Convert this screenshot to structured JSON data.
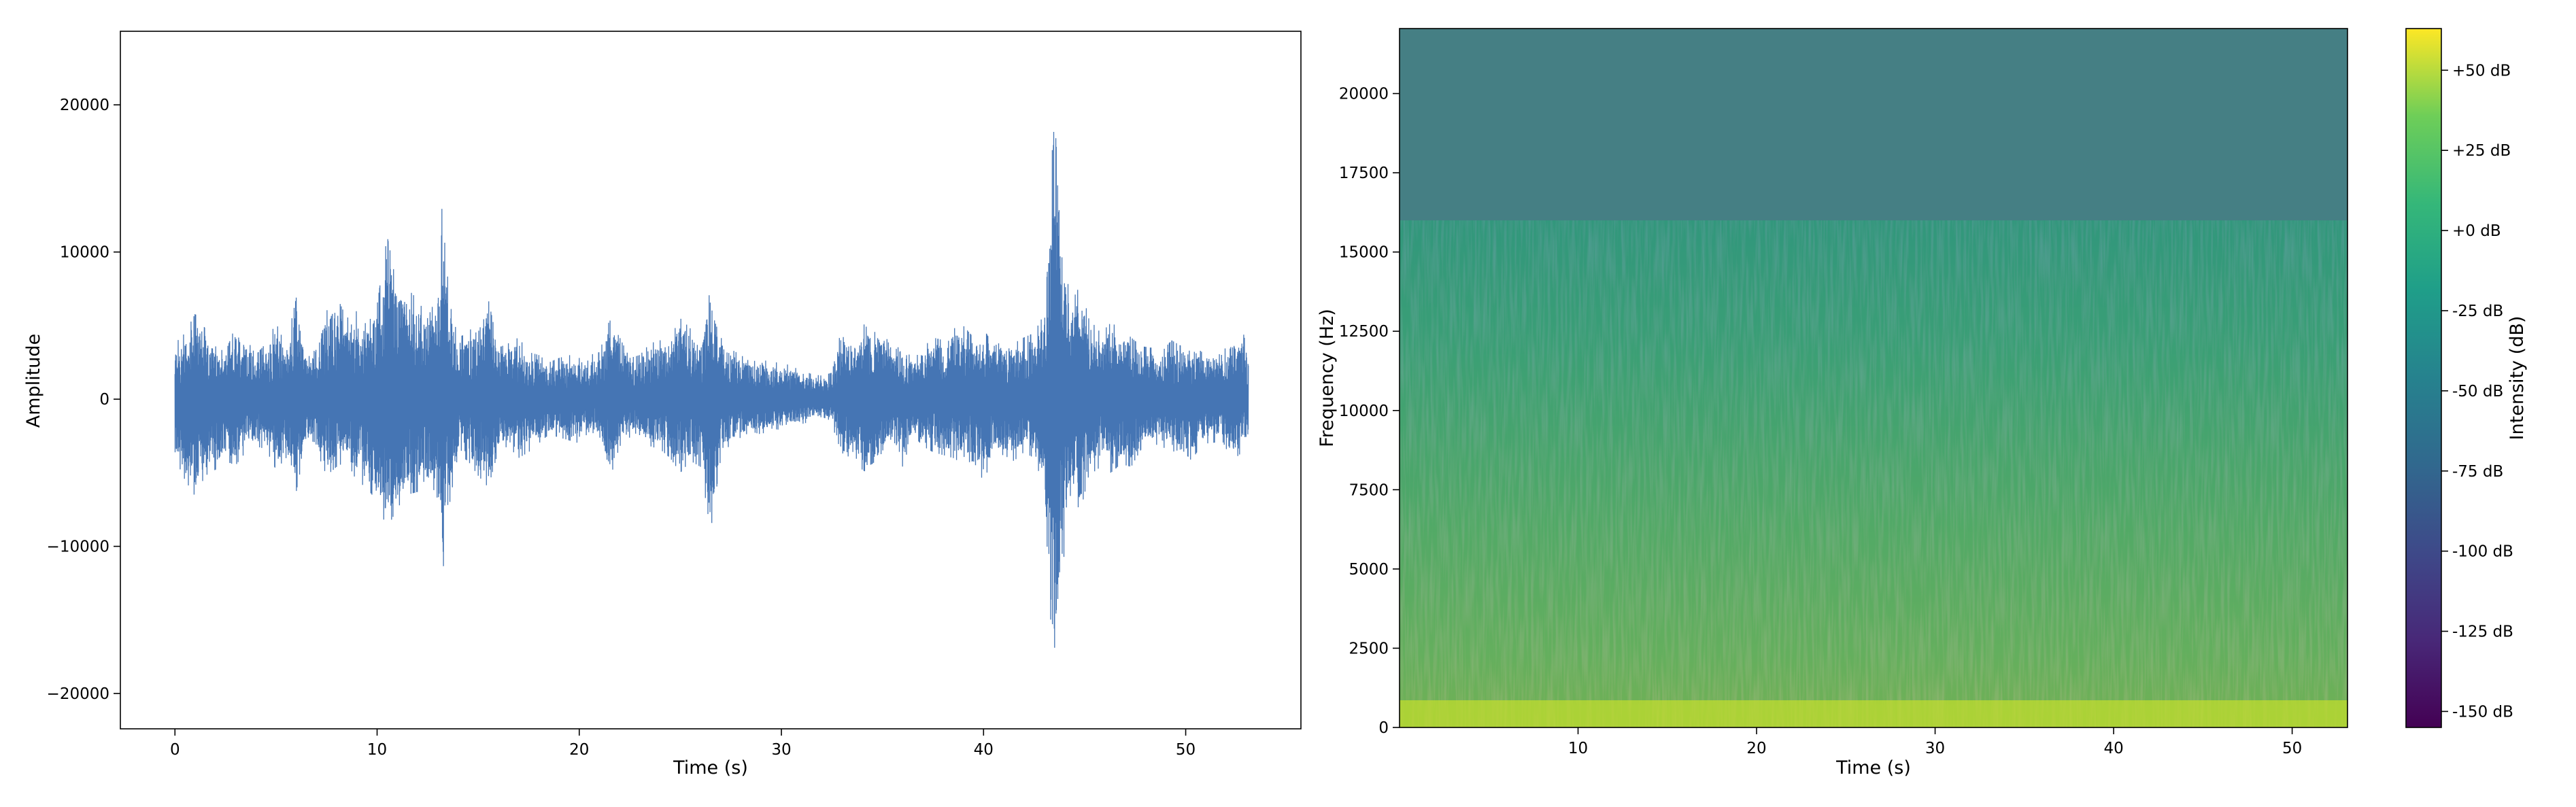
{
  "chart_data": [
    {
      "type": "line",
      "xlabel": "Time (s)",
      "ylabel": "Amplitude",
      "xlim": [
        -2.7,
        55.7
      ],
      "ylim": [
        -22400,
        25000
      ],
      "xticks": [
        0,
        10,
        20,
        30,
        40,
        50
      ],
      "xtick_labels": [
        "0",
        "10",
        "20",
        "30",
        "40",
        "50"
      ],
      "yticks": [
        -20000,
        -10000,
        0,
        10000,
        20000
      ],
      "ytick_labels": [
        "−20000",
        "−10000",
        "0",
        "10000",
        "20000"
      ],
      "grid": false,
      "series_color": "#4575b4",
      "duration": 53.1,
      "envelope": [
        [
          0.0,
          3800,
          -4000
        ],
        [
          0.5,
          4500,
          -5500
        ],
        [
          1.0,
          5800,
          -6600
        ],
        [
          1.5,
          4800,
          -5200
        ],
        [
          2.0,
          3600,
          -4800
        ],
        [
          2.5,
          3200,
          -4200
        ],
        [
          3.0,
          5000,
          -4500
        ],
        [
          3.5,
          4200,
          -3600
        ],
        [
          4.0,
          3000,
          -3200
        ],
        [
          4.5,
          3800,
          -3400
        ],
        [
          5.0,
          5200,
          -4800
        ],
        [
          5.5,
          3600,
          -4000
        ],
        [
          6.0,
          6900,
          -6300
        ],
        [
          6.5,
          3000,
          -2800
        ],
        [
          7.0,
          4000,
          -3500
        ],
        [
          7.5,
          6000,
          -5200
        ],
        [
          8.0,
          7000,
          -4600
        ],
        [
          8.5,
          5500,
          -4200
        ],
        [
          9.0,
          6000,
          -5600
        ],
        [
          9.5,
          5000,
          -6000
        ],
        [
          10.0,
          6400,
          -7000
        ],
        [
          10.5,
          11100,
          -8800
        ],
        [
          11.0,
          7500,
          -7400
        ],
        [
          11.5,
          7500,
          -6500
        ],
        [
          12.0,
          6800,
          -6300
        ],
        [
          12.5,
          5500,
          -5200
        ],
        [
          13.0,
          7200,
          -6800
        ],
        [
          13.2,
          13000,
          -12500
        ],
        [
          13.6,
          6500,
          -7000
        ],
        [
          14.0,
          4200,
          -3800
        ],
        [
          14.5,
          4500,
          -4200
        ],
        [
          15.0,
          5500,
          -5200
        ],
        [
          15.5,
          6800,
          -6000
        ],
        [
          16.0,
          3500,
          -3500
        ],
        [
          16.5,
          3800,
          -3200
        ],
        [
          17.0,
          4200,
          -4000
        ],
        [
          17.5,
          3200,
          -3600
        ],
        [
          18.0,
          3000,
          -3000
        ],
        [
          18.5,
          2500,
          -2400
        ],
        [
          19.0,
          2800,
          -2600
        ],
        [
          19.5,
          3000,
          -2800
        ],
        [
          20.0,
          2800,
          -3000
        ],
        [
          20.5,
          3000,
          -2200
        ],
        [
          21.0,
          3200,
          -2500
        ],
        [
          21.5,
          5400,
          -5500
        ],
        [
          22.0,
          4200,
          -3200
        ],
        [
          22.5,
          2800,
          -2600
        ],
        [
          23.0,
          3000,
          -2800
        ],
        [
          23.5,
          3800,
          -3200
        ],
        [
          24.0,
          4000,
          -3400
        ],
        [
          24.5,
          4200,
          -4000
        ],
        [
          25.0,
          5500,
          -5000
        ],
        [
          25.5,
          4800,
          -4200
        ],
        [
          26.0,
          4000,
          -4600
        ],
        [
          26.5,
          7600,
          -9000
        ],
        [
          27.0,
          4200,
          -4000
        ],
        [
          27.5,
          3400,
          -3000
        ],
        [
          28.0,
          3000,
          -2600
        ],
        [
          28.5,
          2500,
          -2200
        ],
        [
          29.0,
          2800,
          -2400
        ],
        [
          29.5,
          2400,
          -2000
        ],
        [
          30.0,
          2600,
          -2100
        ],
        [
          30.5,
          2200,
          -1800
        ],
        [
          31.0,
          2000,
          -1700
        ],
        [
          31.5,
          1700,
          -1500
        ],
        [
          32.0,
          1600,
          -1200
        ],
        [
          32.5,
          1800,
          -1500
        ],
        [
          33.0,
          5000,
          -4500
        ],
        [
          33.5,
          4000,
          -3500
        ],
        [
          34.0,
          5200,
          -4800
        ],
        [
          34.5,
          4500,
          -5200
        ],
        [
          35.0,
          4800,
          -3500
        ],
        [
          35.5,
          3200,
          -3000
        ],
        [
          36.0,
          3800,
          -4600
        ],
        [
          36.5,
          2600,
          -2400
        ],
        [
          37.0,
          3500,
          -3200
        ],
        [
          37.5,
          4200,
          -3600
        ],
        [
          38.0,
          4000,
          -3800
        ],
        [
          38.5,
          4800,
          -4000
        ],
        [
          39.0,
          5000,
          -4400
        ],
        [
          39.5,
          4200,
          -4200
        ],
        [
          40.0,
          4800,
          -5600
        ],
        [
          40.5,
          3600,
          -3800
        ],
        [
          41.0,
          4000,
          -3800
        ],
        [
          41.5,
          3800,
          -4200
        ],
        [
          42.0,
          4200,
          -3600
        ],
        [
          42.5,
          4500,
          -4000
        ],
        [
          43.0,
          5800,
          -6000
        ],
        [
          43.5,
          22800,
          -20000
        ],
        [
          43.8,
          12000,
          -13000
        ],
        [
          44.3,
          6500,
          -6500
        ],
        [
          44.8,
          7800,
          -7600
        ],
        [
          45.2,
          5500,
          -5200
        ],
        [
          45.8,
          4500,
          -4600
        ],
        [
          46.3,
          5200,
          -5000
        ],
        [
          46.8,
          4800,
          -4400
        ],
        [
          47.3,
          4200,
          -4600
        ],
        [
          47.8,
          3600,
          -3400
        ],
        [
          48.3,
          3500,
          -3000
        ],
        [
          48.8,
          3200,
          -3200
        ],
        [
          49.3,
          4000,
          -3600
        ],
        [
          49.8,
          3600,
          -3400
        ],
        [
          50.3,
          3800,
          -4200
        ],
        [
          50.8,
          3200,
          -3000
        ],
        [
          51.3,
          3200,
          -3000
        ],
        [
          51.8,
          3000,
          -2800
        ],
        [
          52.3,
          4500,
          -4200
        ],
        [
          52.8,
          4800,
          -3600
        ],
        [
          53.1,
          3000,
          -2800
        ]
      ]
    },
    {
      "type": "heatmap",
      "xlabel": "Time (s)",
      "ylabel": "Frequency (Hz)",
      "xlim": [
        0.0,
        53.1
      ],
      "ylim": [
        0,
        22050
      ],
      "xticks": [
        10,
        20,
        30,
        40,
        50
      ],
      "xtick_labels": [
        "10",
        "20",
        "30",
        "40",
        "50"
      ],
      "yticks": [
        0,
        2500,
        5000,
        7500,
        10000,
        12500,
        15000,
        17500,
        20000
      ],
      "ytick_labels": [
        "0",
        "2500",
        "5000",
        "7500",
        "10000",
        "12500",
        "15000",
        "17500",
        "20000"
      ],
      "cutoff_hz": 16000,
      "colormap": "viridis",
      "colorbar": {
        "label": "Intensity (dB)",
        "range": [
          -155,
          63
        ],
        "ticks": [
          50,
          25,
          0,
          -25,
          -50,
          -75,
          -100,
          -125,
          -150
        ],
        "tick_labels": [
          "+50 dB",
          "+25 dB",
          "+0 dB",
          "-25 dB",
          "-50 dB",
          "-75 dB",
          "-100 dB",
          "-125 dB",
          "-150 dB"
        ]
      }
    }
  ]
}
